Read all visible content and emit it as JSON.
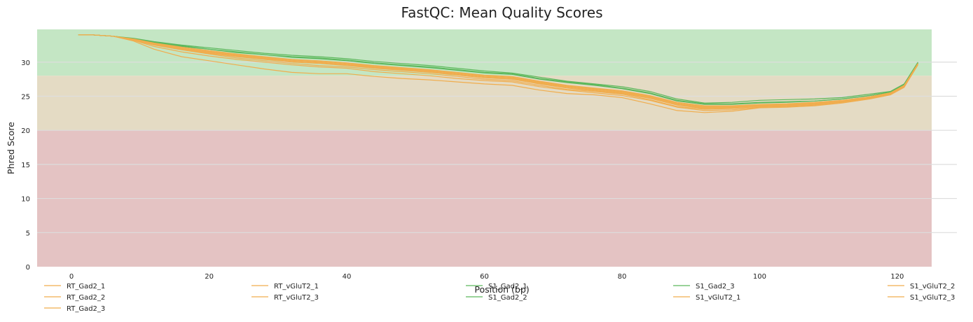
{
  "chart_data": {
    "type": "line",
    "title": "FastQC: Mean Quality Scores",
    "xlabel": "Position (bp)",
    "ylabel": "Phred Score",
    "xlim": [
      -5,
      125
    ],
    "ylim": [
      0,
      34.8
    ],
    "xticks": [
      0,
      20,
      40,
      60,
      80,
      100,
      120
    ],
    "yticks": [
      0,
      5,
      10,
      15,
      20,
      25,
      30
    ],
    "grid": true,
    "legend_position": "bottom",
    "zones": [
      {
        "from": 28,
        "to": 34.8,
        "color": "#c4e6c4"
      },
      {
        "from": 20,
        "to": 28,
        "color": "#e4dbc4"
      },
      {
        "from": 0,
        "to": 20,
        "color": "#e4c3c3"
      }
    ],
    "colors": {
      "orange": "#f0ad4e",
      "green": "#5cb85c"
    },
    "x": [
      1,
      3,
      6,
      9,
      12,
      16,
      20,
      24,
      28,
      32,
      36,
      40,
      44,
      48,
      52,
      56,
      60,
      64,
      68,
      72,
      76,
      80,
      84,
      88,
      92,
      96,
      100,
      104,
      108,
      112,
      116,
      119,
      121,
      123
    ],
    "series": [
      {
        "name": "RT_Gad2_1",
        "color": "#f0ad4e",
        "values": [
          34.0,
          34.0,
          33.8,
          33.2,
          32.3,
          31.5,
          30.9,
          30.4,
          30.0,
          29.6,
          29.3,
          29.1,
          28.6,
          28.3,
          28.0,
          27.6,
          27.3,
          27.1,
          26.4,
          25.9,
          25.5,
          25.1,
          24.4,
          23.4,
          22.9,
          23.0,
          23.4,
          23.5,
          23.7,
          24.1,
          24.7,
          25.3,
          26.4,
          29.7
        ]
      },
      {
        "name": "RT_Gad2_2",
        "color": "#f0ad4e",
        "values": [
          34.0,
          34.0,
          33.8,
          33.3,
          32.6,
          31.9,
          31.3,
          30.8,
          30.4,
          30.0,
          29.8,
          29.5,
          29.1,
          28.8,
          28.5,
          28.1,
          27.7,
          27.5,
          26.8,
          26.2,
          25.8,
          25.4,
          24.7,
          23.7,
          23.2,
          23.3,
          23.6,
          23.7,
          23.9,
          24.2,
          24.8,
          25.4,
          26.5,
          29.8
        ]
      },
      {
        "name": "RT_Gad2_3",
        "color": "#f0ad4e",
        "values": [
          34.0,
          34.0,
          33.8,
          33.1,
          31.9,
          30.8,
          30.2,
          29.6,
          29.0,
          28.5,
          28.3,
          28.3,
          27.9,
          27.6,
          27.4,
          27.1,
          26.8,
          26.6,
          25.9,
          25.4,
          25.2,
          24.8,
          23.9,
          22.9,
          22.6,
          22.8,
          23.3,
          23.4,
          23.6,
          24.0,
          24.6,
          25.2,
          26.3,
          29.6
        ]
      },
      {
        "name": "RT_vGluT2_1",
        "color": "#f0ad4e",
        "values": [
          34.0,
          34.0,
          33.8,
          33.2,
          32.5,
          31.8,
          31.2,
          30.6,
          30.2,
          29.8,
          29.5,
          29.3,
          28.9,
          28.6,
          28.3,
          27.9,
          27.5,
          27.3,
          26.6,
          26.0,
          25.7,
          25.3,
          24.5,
          23.5,
          23.1,
          23.2,
          23.5,
          23.6,
          23.8,
          24.1,
          24.8,
          25.4,
          26.4,
          29.7
        ]
      },
      {
        "name": "RT_vGluT2_3",
        "color": "#f0ad4e",
        "values": [
          34.0,
          34.0,
          33.8,
          33.3,
          32.7,
          32.1,
          31.6,
          31.1,
          30.7,
          30.3,
          30.1,
          29.8,
          29.4,
          29.1,
          28.8,
          28.4,
          28.0,
          27.8,
          27.1,
          26.5,
          26.1,
          25.7,
          25.0,
          24.0,
          23.5,
          23.5,
          23.7,
          23.8,
          24.0,
          24.3,
          24.9,
          25.5,
          26.6,
          29.8
        ]
      },
      {
        "name": "S1_Gad2_1",
        "color": "#5cb85c",
        "values": [
          34.0,
          34.0,
          33.8,
          33.4,
          32.9,
          32.4,
          31.9,
          31.5,
          31.1,
          30.8,
          30.6,
          30.3,
          29.9,
          29.6,
          29.3,
          28.9,
          28.5,
          28.3,
          27.6,
          27.1,
          26.7,
          26.2,
          25.5,
          24.4,
          23.9,
          23.9,
          24.1,
          24.2,
          24.3,
          24.6,
          25.1,
          25.6,
          26.7,
          29.9
        ]
      },
      {
        "name": "S1_Gad2_2",
        "color": "#5cb85c",
        "values": [
          34.0,
          34.0,
          33.8,
          33.4,
          32.9,
          32.3,
          31.9,
          31.4,
          31.1,
          30.7,
          30.5,
          30.2,
          29.8,
          29.5,
          29.2,
          28.8,
          28.4,
          28.2,
          27.5,
          27.0,
          26.6,
          26.1,
          25.4,
          24.3,
          23.8,
          23.8,
          24.0,
          24.1,
          24.3,
          24.6,
          25.1,
          25.6,
          26.7,
          29.9
        ]
      },
      {
        "name": "S1_Gad2_3",
        "color": "#5cb85c",
        "values": [
          34.0,
          34.0,
          33.8,
          33.5,
          33.0,
          32.5,
          32.1,
          31.7,
          31.3,
          31.0,
          30.8,
          30.5,
          30.1,
          29.8,
          29.5,
          29.1,
          28.7,
          28.4,
          27.8,
          27.2,
          26.8,
          26.4,
          25.7,
          24.6,
          24.0,
          24.1,
          24.4,
          24.5,
          24.6,
          24.8,
          25.3,
          25.7,
          26.8,
          30.0
        ]
      },
      {
        "name": "S1_vGluT2_1",
        "color": "#f0ad4e",
        "values": [
          34.0,
          34.0,
          33.8,
          33.3,
          32.6,
          31.9,
          31.4,
          30.9,
          30.5,
          30.1,
          29.9,
          29.6,
          29.2,
          28.9,
          28.6,
          28.2,
          27.8,
          27.6,
          26.9,
          26.3,
          25.9,
          25.5,
          24.8,
          23.8,
          23.3,
          23.4,
          23.6,
          23.7,
          23.9,
          24.2,
          24.8,
          25.4,
          26.5,
          29.8
        ]
      },
      {
        "name": "S1_vGluT2_2",
        "color": "#f0ad4e",
        "values": [
          34.0,
          34.0,
          33.8,
          33.3,
          32.7,
          32.0,
          31.5,
          31.0,
          30.6,
          30.2,
          30.0,
          29.7,
          29.3,
          29.0,
          28.7,
          28.3,
          27.9,
          27.7,
          27.0,
          26.4,
          26.0,
          25.6,
          24.9,
          23.9,
          23.4,
          23.4,
          23.7,
          23.8,
          24.0,
          24.3,
          24.9,
          25.5,
          26.5,
          29.8
        ]
      },
      {
        "name": "S1_vGluT2_3",
        "color": "#f0ad4e",
        "values": [
          34.0,
          34.0,
          33.8,
          33.4,
          32.8,
          32.2,
          31.7,
          31.2,
          30.8,
          30.4,
          30.2,
          29.9,
          29.5,
          29.2,
          28.9,
          28.5,
          28.1,
          27.9,
          27.2,
          26.6,
          26.2,
          25.8,
          25.1,
          24.1,
          23.6,
          23.6,
          23.8,
          23.9,
          24.1,
          24.4,
          24.9,
          25.5,
          26.6,
          29.8
        ]
      }
    ]
  }
}
